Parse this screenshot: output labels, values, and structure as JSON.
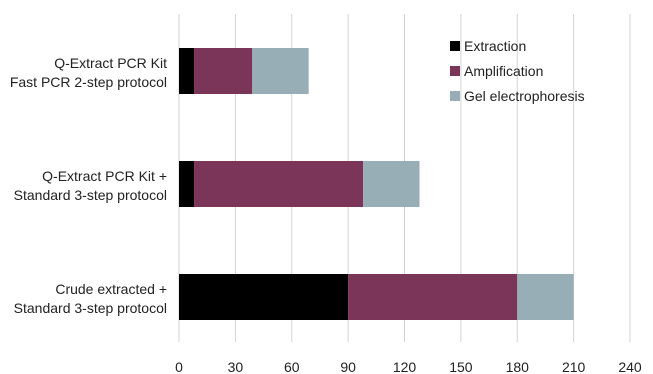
{
  "chart_data": {
    "type": "bar",
    "orientation": "horizontal",
    "stacked": true,
    "categories": [
      [
        "Q-Extract PCR Kit",
        "Fast PCR 2-step protocol"
      ],
      [
        "Q-Extract PCR Kit +",
        "Standard 3-step protocol"
      ],
      [
        "Crude extracted +",
        "Standard 3-step protocol"
      ]
    ],
    "series": [
      {
        "name": "Extraction",
        "color": "#000000",
        "values": [
          8,
          8,
          90
        ]
      },
      {
        "name": "Amplification",
        "color": "#7b3558",
        "values": [
          31,
          90,
          90
        ]
      },
      {
        "name": "Gel electrophoresis",
        "color": "#98aeb6",
        "values": [
          30,
          30,
          30
        ]
      }
    ],
    "xlim": [
      0,
      240
    ],
    "xticks": [
      0,
      30,
      60,
      90,
      120,
      150,
      180,
      210,
      240
    ],
    "grid": true,
    "legend_position": "top-right",
    "title": "",
    "xlabel": "",
    "ylabel": ""
  }
}
